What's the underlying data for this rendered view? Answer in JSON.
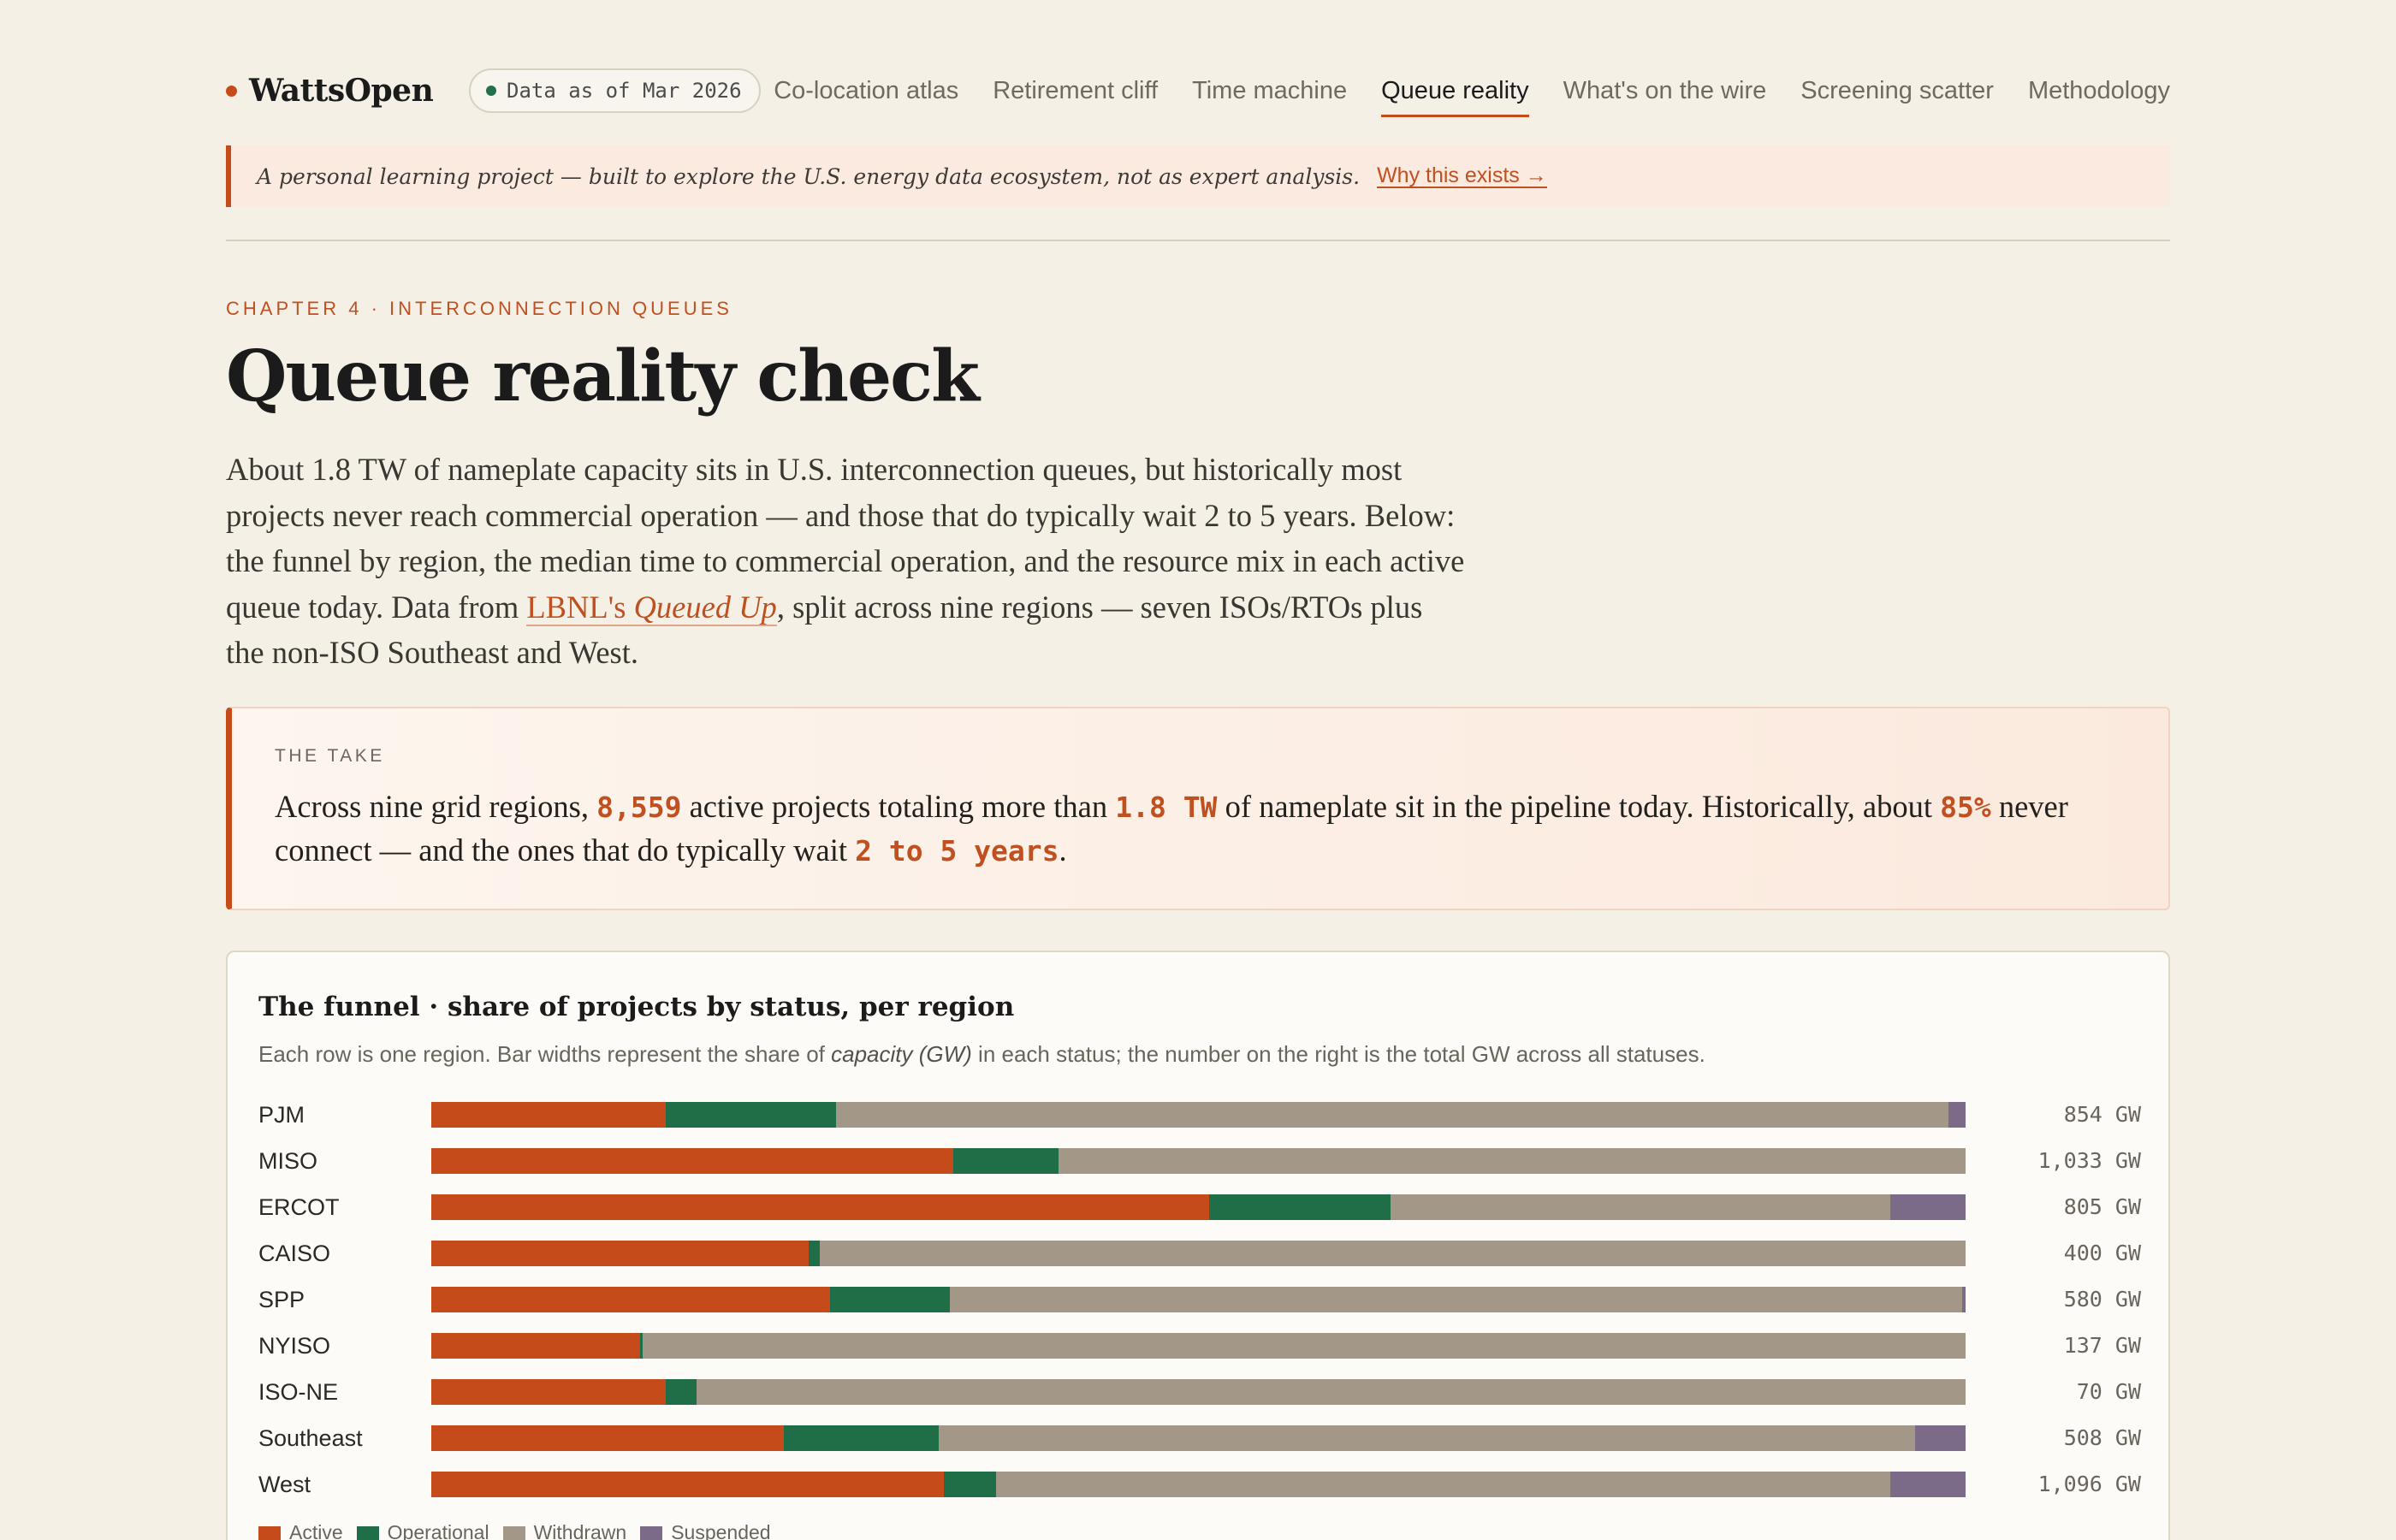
{
  "brand": {
    "name": "WattsOpen"
  },
  "data_pill": {
    "text": "Data as of Mar 2026"
  },
  "nav": {
    "items": [
      {
        "label": "Co-location atlas"
      },
      {
        "label": "Retirement cliff"
      },
      {
        "label": "Time machine"
      },
      {
        "label": "Queue reality",
        "active": true
      },
      {
        "label": "What's on the wire"
      },
      {
        "label": "Screening scatter"
      },
      {
        "label": "Methodology"
      }
    ]
  },
  "banner": {
    "text": "A personal learning project — built to explore the U.S. energy data ecosystem, not as expert analysis.",
    "link": "Why this exists →"
  },
  "intro": {
    "eyebrow": "CHAPTER 4 · INTERCONNECTION QUEUES",
    "title": "Queue reality check",
    "lede_before": "About 1.8 TW of nameplate capacity sits in U.S. interconnection queues, but historically most projects never reach commercial operation — and those that do typically wait 2 to 5 years. Below: the funnel by region, the median time to commercial operation, and the resource mix in each active queue today. Data from ",
    "lede_link_a": "LBNL's ",
    "lede_link_b": "Queued Up",
    "lede_after": ", split across nine regions — seven ISOs/RTOs plus the non-ISO Southeast and West."
  },
  "take": {
    "label": "THE TAKE",
    "t1": "Across nine grid regions, ",
    "h1": "8,559",
    "t2": " active projects totaling more than ",
    "h2": "1.8 TW",
    "t3": " of nameplate sit in the pipeline today. Historically, about ",
    "h3": "85%",
    "t4": " never connect — and the ones that do typically wait ",
    "h4": "2 to 5 years",
    "t5": "."
  },
  "chart_card": {
    "title": "The funnel · share of projects by status, per region",
    "sub_before": "Each row is one region. Bar widths represent the share of ",
    "sub_em": "capacity (GW)",
    "sub_after": " in each status; the number on the right is the total GW across all statuses."
  },
  "chart_data": {
    "type": "bar",
    "orientation": "horizontal",
    "stacked": true,
    "normalized": true,
    "unit": "share of capacity",
    "categories": [
      "PJM",
      "MISO",
      "ERCOT",
      "CAISO",
      "SPP",
      "NYISO",
      "ISO-NE",
      "Southeast",
      "West"
    ],
    "totals": [
      "854 GW",
      "1,033 GW",
      "805 GW",
      "400 GW",
      "580 GW",
      "137 GW",
      "70 GW",
      "508 GW",
      "1,096 GW"
    ],
    "series": [
      {
        "name": "Active",
        "color": "#c64b1b",
        "values": [
          0.153,
          0.34,
          0.507,
          0.246,
          0.26,
          0.136,
          0.153,
          0.23,
          0.334
        ]
      },
      {
        "name": "Operational",
        "color": "#1f6e47",
        "values": [
          0.111,
          0.069,
          0.118,
          0.007,
          0.078,
          0.002,
          0.02,
          0.101,
          0.034
        ]
      },
      {
        "name": "Withdrawn",
        "color": "#a39787",
        "values": [
          0.725,
          0.591,
          0.326,
          0.747,
          0.66,
          0.862,
          0.827,
          0.636,
          0.583
        ]
      },
      {
        "name": "Suspended",
        "color": "#7b6b88",
        "values": [
          0.011,
          0.0,
          0.049,
          0.0,
          0.002,
          0.0,
          0.0,
          0.033,
          0.049
        ]
      }
    ],
    "legend_position": "bottom-left"
  }
}
